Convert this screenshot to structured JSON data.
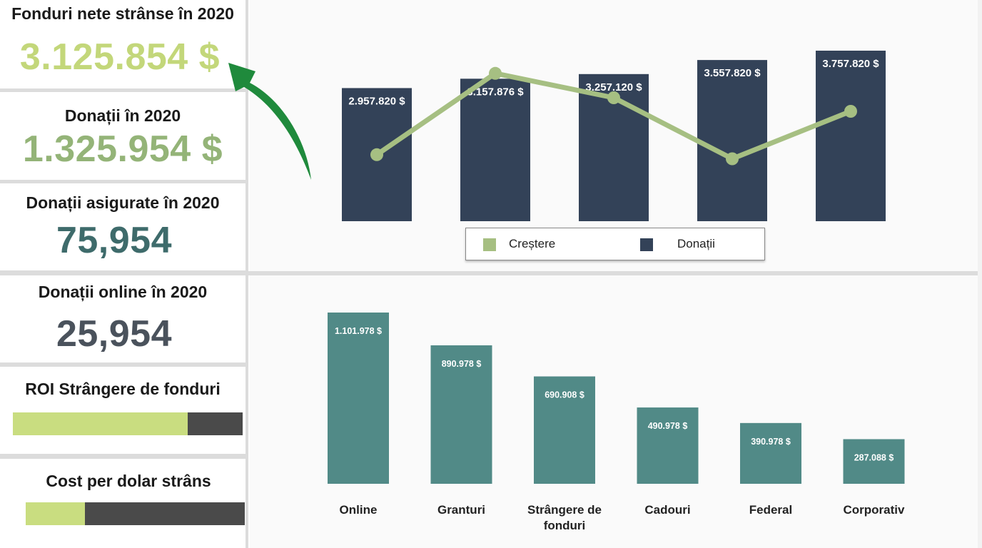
{
  "kpis": {
    "net_funds": {
      "title": "Fonduri nete strânse în 2020",
      "value": "3.125.854 $"
    },
    "donations": {
      "title": "Donații în 2020",
      "value": "1.325.954 $"
    },
    "secured": {
      "title": "Donații asigurate în 2020",
      "value": "75,954"
    },
    "online": {
      "title": "Donații online în 2020",
      "value": "25,954"
    },
    "roi": {
      "title": "ROI Strângere de fonduri",
      "level": 0.76
    },
    "cost": {
      "title": "Cost per dolar strâns",
      "level": 0.27
    }
  },
  "colors": {
    "net_funds": "#c3d77a",
    "donations": "#94b478",
    "secured": "#3e6b6b",
    "online": "#4a525c",
    "bar_dark": "#334258",
    "line_green": "#a6bf82",
    "bar_teal": "#518a87",
    "arrow_green": "#1f8a3c",
    "progress_fill": "#c9dd80",
    "progress_track": "#4a4a4a"
  },
  "chart_data": [
    {
      "type": "bar",
      "categories": [
        "",
        "",
        "",
        "",
        ""
      ],
      "series": [
        {
          "name": "Donații",
          "values": [
            2957820,
            3157876,
            3257120,
            3557820,
            3757820
          ],
          "labels": [
            "2.957.820 $",
            "3.157.876 $",
            "3.257.120 $",
            "3.557.820 $",
            "3.757.820 $"
          ]
        },
        {
          "name": "Creștere",
          "type": "line",
          "values": [
            0.28,
            0.88,
            0.7,
            0.25,
            0.6
          ]
        }
      ],
      "legend": {
        "position": "bottom",
        "items": [
          "Creștere",
          "Donații"
        ]
      },
      "ylim": [
        0,
        4000000
      ],
      "grid": false
    },
    {
      "type": "bar",
      "categories": [
        "Online",
        "Granturi",
        "Strângere de fonduri",
        "Cadouri",
        "Federal",
        "Corporativ"
      ],
      "values": [
        1101978,
        890978,
        690908,
        490978,
        390978,
        287088
      ],
      "labels": [
        "1.101.978 $",
        "890.978 $",
        "690.908 $",
        "490.978 $",
        "390.978 $",
        "287.088 $"
      ],
      "ylim": [
        0,
        1101978
      ],
      "grid": false
    }
  ]
}
